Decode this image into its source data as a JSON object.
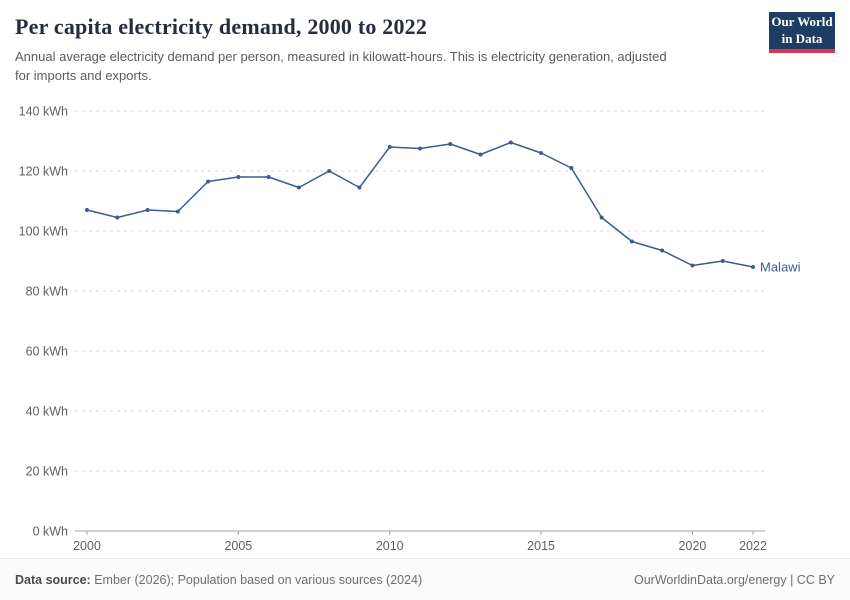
{
  "header": {
    "title": "Per capita electricity demand, 2000 to 2022",
    "subtitle": "Annual average electricity demand per person, measured in kilowatt-hours. This is electricity generation, adjusted for imports and exports.",
    "logo": {
      "line1": "Our World",
      "line2": "in Data"
    }
  },
  "chart_data": {
    "type": "line",
    "title": "Per capita electricity demand, 2000 to 2022",
    "xlabel": "",
    "ylabel": "kWh",
    "ylim": [
      0,
      140
    ],
    "xlim": [
      2000,
      2022
    ],
    "yticks": [
      0,
      20,
      40,
      60,
      80,
      100,
      120,
      140
    ],
    "ytick_suffix": " kWh",
    "xticks": [
      2000,
      2005,
      2010,
      2015,
      2020,
      2022
    ],
    "grid": "horizontal-dashed",
    "legend_position": "end-of-line",
    "x": [
      2000,
      2001,
      2002,
      2003,
      2004,
      2005,
      2006,
      2007,
      2008,
      2009,
      2010,
      2011,
      2012,
      2013,
      2014,
      2015,
      2016,
      2017,
      2018,
      2019,
      2020,
      2021,
      2022
    ],
    "series": [
      {
        "name": "Malawi",
        "color": "#3d5a91",
        "values": [
          107,
          104.5,
          107,
          106.5,
          116.5,
          118,
          118,
          114.5,
          120,
          114.5,
          128,
          127.5,
          129,
          125.5,
          129.5,
          126,
          121,
          104.5,
          96.5,
          93.5,
          88.5,
          90,
          88
        ]
      }
    ],
    "colors": {
      "grid": "#d9d9d9",
      "axis": "#a5a5a5",
      "tick_text": "#616161"
    }
  },
  "footer": {
    "datasource_label": "Data source:",
    "datasource_text": " Ember (2026); Population based on various sources (2024)",
    "credit": "OurWorldinData.org/energy | CC BY"
  }
}
